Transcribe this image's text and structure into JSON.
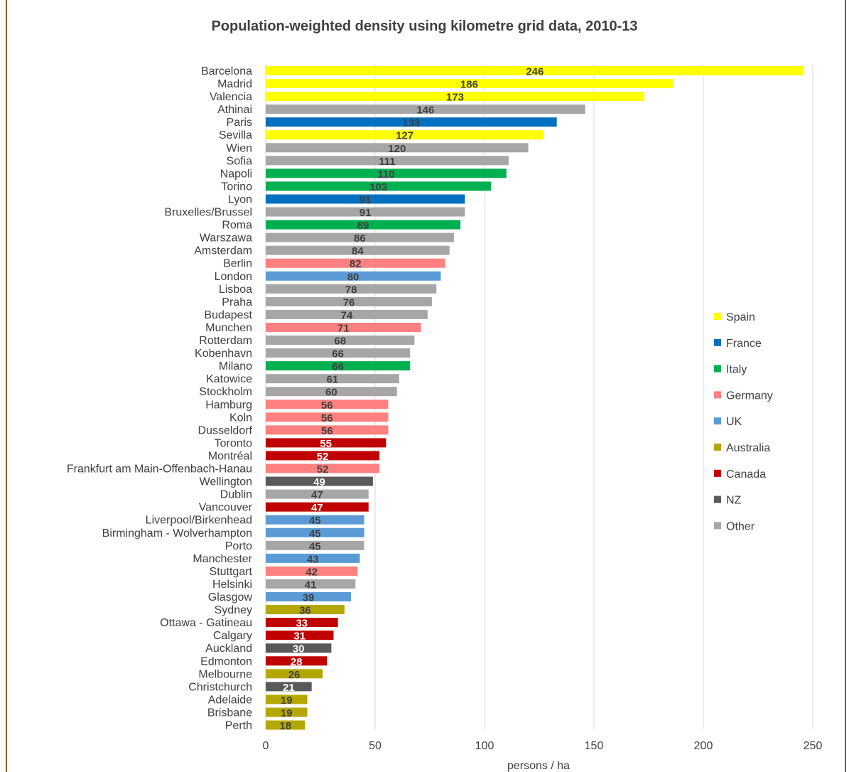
{
  "chart_data": {
    "type": "bar",
    "orientation": "horizontal",
    "title": "Population-weighted density using kilometre grid data, 2010-13",
    "xlabel": "persons / ha",
    "ylabel": "",
    "xlim": [
      0,
      250
    ],
    "xticks": [
      0,
      50,
      100,
      150,
      200,
      250
    ],
    "grid": "vertical",
    "legend_position": "right",
    "groups": [
      {
        "name": "Spain",
        "color": "#FFFF00"
      },
      {
        "name": "France",
        "color": "#0070C0"
      },
      {
        "name": "Italy",
        "color": "#00B050"
      },
      {
        "name": "Germany",
        "color": "#FF8080"
      },
      {
        "name": "UK",
        "color": "#5B9BD5"
      },
      {
        "name": "Australia",
        "color": "#B4A800"
      },
      {
        "name": "Canada",
        "color": "#C00000"
      },
      {
        "name": "NZ",
        "color": "#595959"
      },
      {
        "name": "Other",
        "color": "#A6A6A6"
      }
    ],
    "categories": [
      "Barcelona",
      "Madrid",
      "Valencia",
      "Athinai",
      "Paris",
      "Sevilla",
      "Wien",
      "Sofia",
      "Napoli",
      "Torino",
      "Lyon",
      "Bruxelles/Brussel",
      "Roma",
      "Warszawa",
      "Amsterdam",
      "Berlin",
      "London",
      "Lisboa",
      "Praha",
      "Budapest",
      "Munchen",
      "Rotterdam",
      "Kobenhavn",
      "Milano",
      "Katowice",
      "Stockholm",
      "Hamburg",
      "Koln",
      "Dusseldorf",
      "Toronto",
      "Montréal",
      "Frankfurt am Main-Offenbach-Hanau",
      "Wellington",
      "Dublin",
      "Vancouver",
      "Liverpool/Birkenhead",
      "Birmingham - Wolverhampton",
      "Porto",
      "Manchester",
      "Stuttgart",
      "Helsinki",
      "Glasgow",
      "Sydney",
      "Ottawa - Gatineau",
      "Calgary",
      "Auckland",
      "Edmonton",
      "Melbourne",
      "Christchurch",
      "Adelaide",
      "Brisbane",
      "Perth"
    ],
    "values": [
      246,
      186,
      173,
      146,
      133,
      127,
      120,
      111,
      110,
      103,
      91,
      91,
      89,
      86,
      84,
      82,
      80,
      78,
      76,
      74,
      71,
      68,
      66,
      66,
      61,
      60,
      56,
      56,
      56,
      55,
      52,
      52,
      49,
      47,
      47,
      45,
      45,
      45,
      43,
      42,
      41,
      39,
      36,
      33,
      31,
      30,
      28,
      26,
      21,
      19,
      19,
      18
    ],
    "bar_groups": [
      "Spain",
      "Spain",
      "Spain",
      "Other",
      "France",
      "Spain",
      "Other",
      "Other",
      "Italy",
      "Italy",
      "France",
      "Other",
      "Italy",
      "Other",
      "Other",
      "Germany",
      "UK",
      "Other",
      "Other",
      "Other",
      "Germany",
      "Other",
      "Other",
      "Italy",
      "Other",
      "Other",
      "Germany",
      "Germany",
      "Germany",
      "Canada",
      "Canada",
      "Germany",
      "NZ",
      "Other",
      "Canada",
      "UK",
      "UK",
      "Other",
      "UK",
      "Germany",
      "Other",
      "UK",
      "Australia",
      "Canada",
      "Canada",
      "NZ",
      "Canada",
      "Australia",
      "NZ",
      "Australia",
      "Australia",
      "Australia"
    ]
  }
}
